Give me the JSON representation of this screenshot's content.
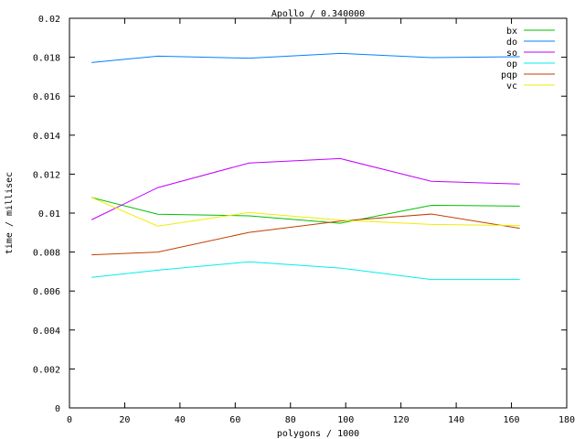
{
  "chart_data": {
    "type": "line",
    "title": "Apollo / 0.340000",
    "xlabel": "polygons / 1000",
    "ylabel": "time / millisec",
    "xlim": [
      0,
      180
    ],
    "ylim": [
      0,
      0.02
    ],
    "xticks": [
      "0",
      "20",
      "40",
      "60",
      "80",
      "100",
      "120",
      "140",
      "160",
      "180"
    ],
    "yticks": [
      "0",
      "0.002",
      "0.004",
      "0.006",
      "0.008",
      "0.01",
      "0.012",
      "0.014",
      "0.016",
      "0.018",
      "0.02"
    ],
    "grid": false,
    "legend_position": "top-right",
    "x": [
      8,
      32,
      65,
      98,
      131,
      163
    ],
    "series": [
      {
        "name": "bx",
        "color": "#00c000",
        "values": [
          0.0108,
          0.00994,
          0.00986,
          0.00948,
          0.0104,
          0.01036
        ]
      },
      {
        "name": "do",
        "color": "#0080ff",
        "values": [
          0.01773,
          0.01806,
          0.01795,
          0.0182,
          0.01798,
          0.01803
        ]
      },
      {
        "name": "so",
        "color": "#c000ff",
        "values": [
          0.00966,
          0.01131,
          0.01257,
          0.0128,
          0.01163,
          0.01149
        ]
      },
      {
        "name": "op",
        "color": "#00eeee",
        "values": [
          0.0067,
          0.00707,
          0.0075,
          0.00718,
          0.00659,
          0.00659
        ]
      },
      {
        "name": "pqp",
        "color": "#c04000",
        "values": [
          0.00786,
          0.008,
          0.00901,
          0.00959,
          0.00995,
          0.00922
        ]
      },
      {
        "name": "vc",
        "color": "#eeee00",
        "values": [
          0.0108,
          0.00933,
          0.01003,
          0.00964,
          0.00942,
          0.00936
        ]
      }
    ]
  }
}
